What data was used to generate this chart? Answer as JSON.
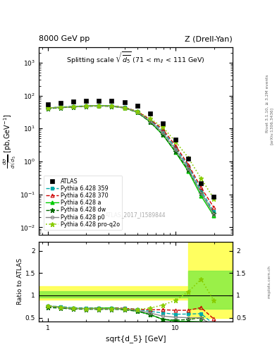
{
  "title_left": "8000 GeV pp",
  "title_right": "Z (Drell-Yan)",
  "atlas_id": "ATLAS_2017_I1589844",
  "x_atlas": [
    1.0,
    1.26,
    1.58,
    2.0,
    2.51,
    3.16,
    3.98,
    5.01,
    6.31,
    7.94,
    10.0,
    12.59,
    15.85,
    19.95
  ],
  "y_atlas": [
    55.0,
    60.0,
    65.0,
    68.0,
    70.0,
    68.0,
    62.0,
    48.0,
    28.0,
    14.0,
    4.5,
    1.2,
    0.22,
    0.085
  ],
  "x_mc": [
    1.0,
    1.26,
    1.58,
    2.0,
    2.51,
    3.16,
    3.98,
    5.01,
    6.31,
    7.94,
    10.0,
    12.59,
    15.85,
    19.95
  ],
  "y_359": [
    42.0,
    45.0,
    47.0,
    49.0,
    50.0,
    49.0,
    44.0,
    33.0,
    18.0,
    8.5,
    2.6,
    0.7,
    0.13,
    0.03
  ],
  "y_370": [
    42.0,
    44.0,
    46.0,
    48.0,
    50.0,
    49.0,
    44.0,
    33.0,
    19.0,
    9.5,
    3.0,
    0.8,
    0.16,
    0.04
  ],
  "y_a": [
    42.0,
    44.0,
    46.0,
    48.0,
    50.0,
    49.0,
    43.0,
    31.0,
    16.0,
    6.5,
    1.9,
    0.5,
    0.09,
    0.022
  ],
  "y_dw": [
    40.0,
    43.0,
    45.0,
    47.0,
    48.0,
    47.0,
    42.0,
    31.0,
    16.0,
    6.5,
    2.0,
    0.55,
    0.11,
    0.026
  ],
  "y_p0": [
    42.0,
    44.0,
    46.0,
    48.0,
    49.0,
    48.0,
    43.0,
    32.0,
    17.0,
    7.5,
    2.3,
    0.6,
    0.11,
    0.025
  ],
  "y_proq2o": [
    42.0,
    44.0,
    46.0,
    48.0,
    49.0,
    48.0,
    43.0,
    33.0,
    20.0,
    11.0,
    4.0,
    1.3,
    0.3,
    0.075
  ],
  "color_atlas": "#000000",
  "color_359": "#00aaaa",
  "color_370": "#cc0000",
  "color_a": "#00cc00",
  "color_dw": "#006600",
  "color_p0": "#888888",
  "color_proq2o": "#88cc00",
  "band_yellow_color": "#ffff44",
  "band_green_color": "#88ee44",
  "ratio_ylim": [
    0.42,
    2.2
  ],
  "ratio_yticks": [
    0.5,
    1.0,
    1.5,
    2.0
  ],
  "main_ylim_lo": 0.006,
  "main_ylim_hi": 3000.0,
  "xlim_lo": 0.85,
  "xlim_hi": 28.0
}
